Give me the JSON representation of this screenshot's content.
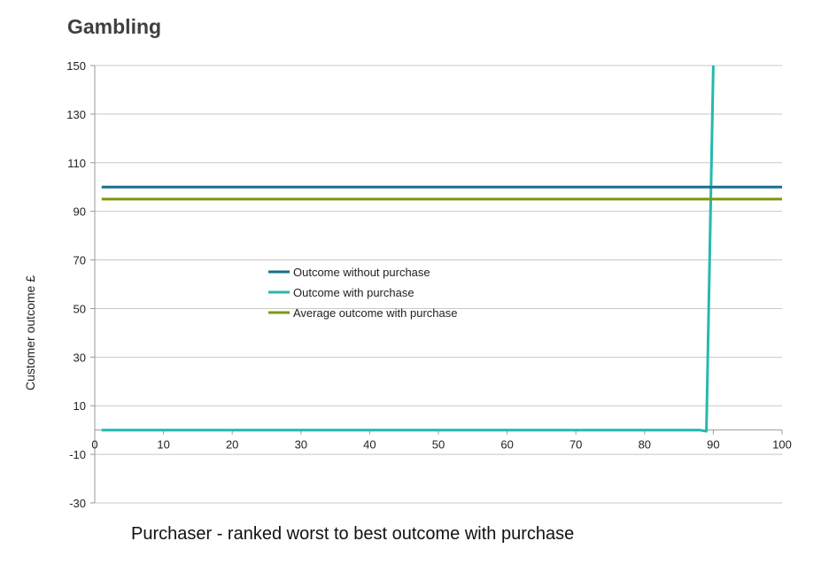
{
  "page": {
    "title": "Gambling"
  },
  "chart_data": {
    "type": "line",
    "title": "Gambling",
    "xlabel": "Purchaser - ranked worst to best outcome with purchase",
    "ylabel": "Customer outcome £",
    "xlim": [
      0,
      100
    ],
    "ylim": [
      -30,
      150
    ],
    "x_ticks": [
      10,
      20,
      30,
      40,
      50,
      60,
      70,
      80,
      90,
      100
    ],
    "y_ticks": [
      150,
      130,
      110,
      90,
      70,
      50,
      30,
      10,
      -10,
      -30
    ],
    "grid": true,
    "legend_position": "center-left",
    "series": [
      {
        "name": "Outcome without purchase",
        "color": "#1a6e8e",
        "x": [
          1,
          100
        ],
        "y": [
          100,
          100
        ]
      },
      {
        "name": "Outcome with purchase",
        "color": "#26b8b0",
        "x": [
          1,
          88,
          89,
          90
        ],
        "y": [
          0,
          0,
          -0.5,
          150
        ]
      },
      {
        "name": "Average outcome with purchase",
        "color": "#7a9a0a",
        "x": [
          1,
          100
        ],
        "y": [
          95,
          95
        ]
      }
    ]
  }
}
